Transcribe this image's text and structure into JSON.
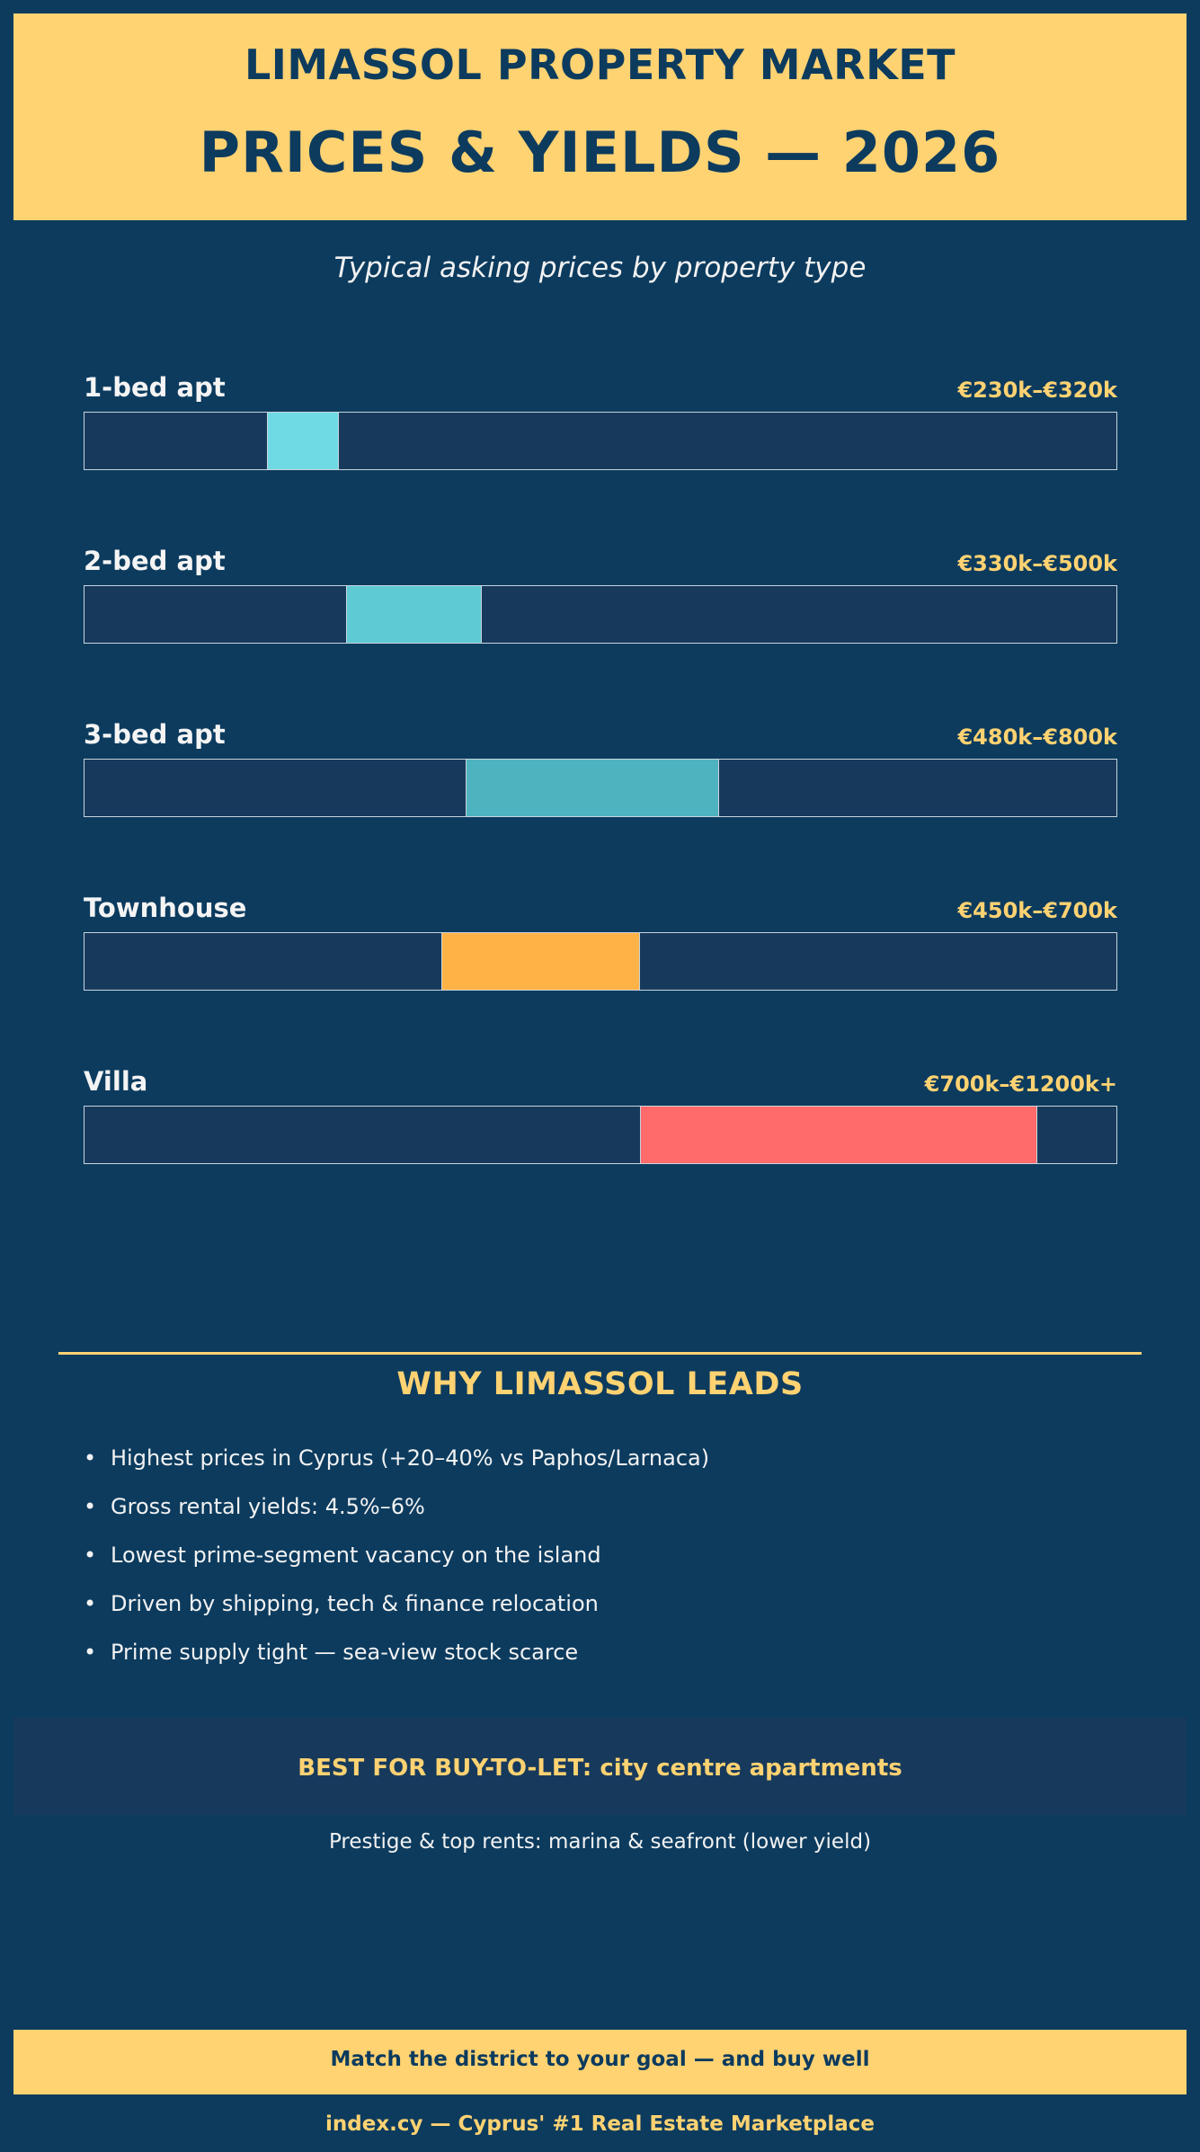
{
  "header": {
    "line1": "LIMASSOL PROPERTY MARKET",
    "line2": "PRICES & YIELDS — 2026"
  },
  "subtitle": "Typical asking prices by property type",
  "chart_data": {
    "type": "bar",
    "orientation": "horizontal-range",
    "title": "Typical asking prices by property type",
    "unit": "€k",
    "xlim": [
      0,
      1300
    ],
    "grid": false,
    "categories": [
      "1-bed apt",
      "2-bed apt",
      "3-bed apt",
      "Townhouse",
      "Villa"
    ],
    "ranges": [
      {
        "label": "1-bed apt",
        "low": 230,
        "high": 320,
        "value_label": "€230k–€320k",
        "color": "#70dae4"
      },
      {
        "label": "2-bed apt",
        "low": 330,
        "high": 500,
        "value_label": "€330k–€500k",
        "color": "#5ecad4"
      },
      {
        "label": "3-bed apt",
        "low": 480,
        "high": 800,
        "value_label": "€480k–€800k",
        "color": "#4fb3bf"
      },
      {
        "label": "Townhouse",
        "low": 450,
        "high": 700,
        "value_label": "€450k–€700k",
        "color": "#ffb347"
      },
      {
        "label": "Villa",
        "low": 700,
        "high": 1200,
        "value_label": "€700k–€1200k+",
        "color": "#ff6b6b"
      }
    ]
  },
  "why": {
    "title": "WHY LIMASSOL LEADS",
    "bullet_symbol": "•",
    "items": [
      "Highest prices in Cyprus (+20–40% vs Paphos/Larnaca)",
      "Gross rental yields: 4.5%–6%",
      "Lowest prime-segment vacancy on the island",
      "Driven by shipping, tech & finance relocation",
      "Prime supply tight — sea-view stock scarce"
    ]
  },
  "callout": {
    "title": "BEST FOR BUY-TO-LET: city centre apartments",
    "subtitle": "Prestige & top rents: marina & seafront (lower yield)"
  },
  "cta": "Match the district to your goal — and buy well",
  "footer": "index.cy — Cyprus' #1 Real Estate Marketplace",
  "colors": {
    "background": "#0c3b5e",
    "accent": "#ffd272",
    "track": "#173a5c"
  }
}
